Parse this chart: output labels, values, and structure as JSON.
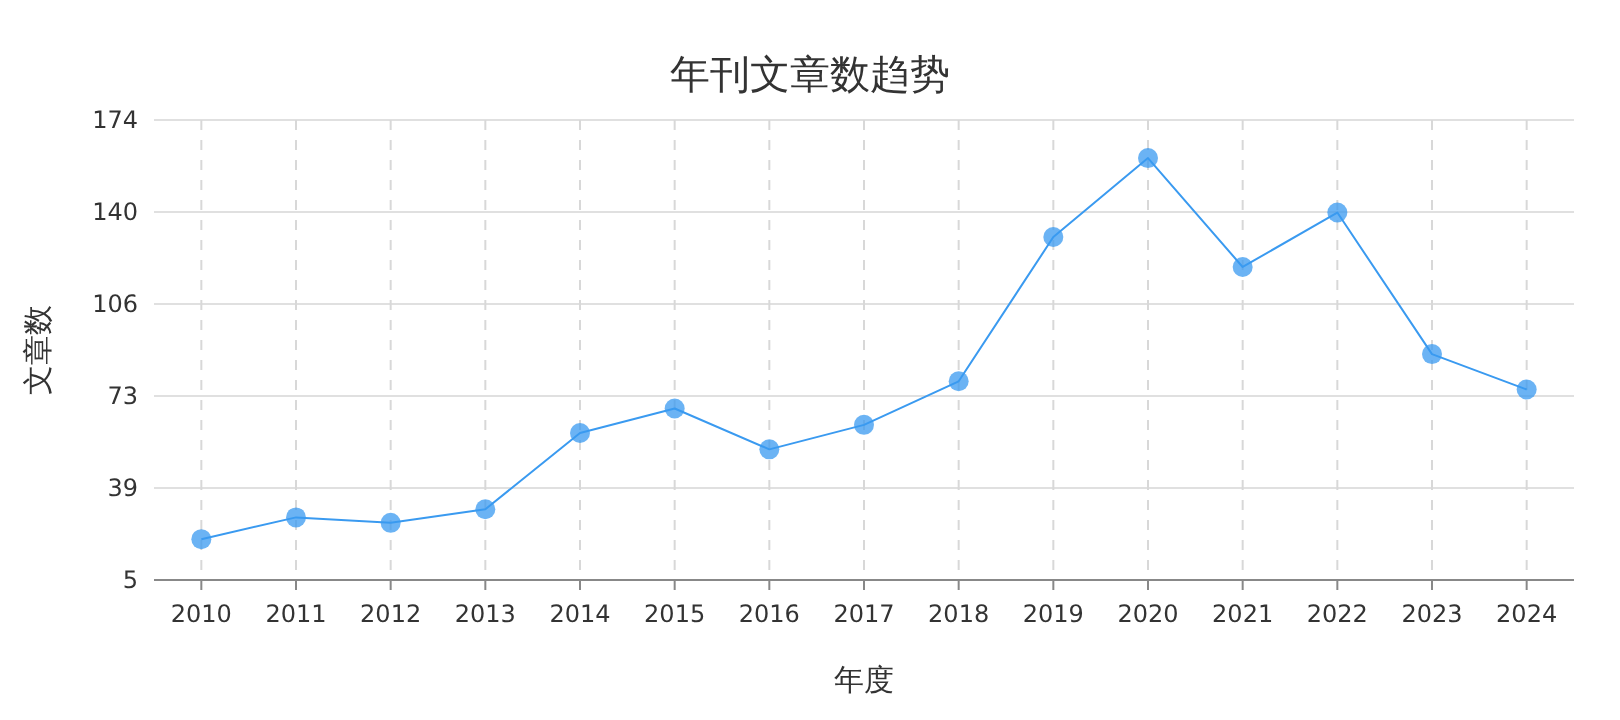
{
  "chart_data": {
    "type": "line",
    "title": "年刊文章数趋势",
    "xlabel": "年度",
    "ylabel": "文章数",
    "categories": [
      "2010",
      "2011",
      "2012",
      "2013",
      "2014",
      "2015",
      "2016",
      "2017",
      "2018",
      "2019",
      "2020",
      "2021",
      "2022",
      "2023",
      "2024"
    ],
    "series": [
      {
        "color": "#3a9af0",
        "values": [
          20,
          28,
          26,
          31,
          59,
          68,
          53,
          62,
          78,
          131,
          160,
          120,
          140,
          88,
          75
        ]
      }
    ],
    "ylim": [
      5,
      174
    ],
    "yticks": [
      5,
      {
        "value": 38.8,
        "label": "39"
      },
      {
        "value": 72.6,
        "label": "73"
      },
      {
        "value": 106.4,
        "label": "106"
      },
      {
        "value": 140.2,
        "label": "140"
      },
      174
    ],
    "grid": true,
    "marker": "circle",
    "line_style": "solid"
  }
}
